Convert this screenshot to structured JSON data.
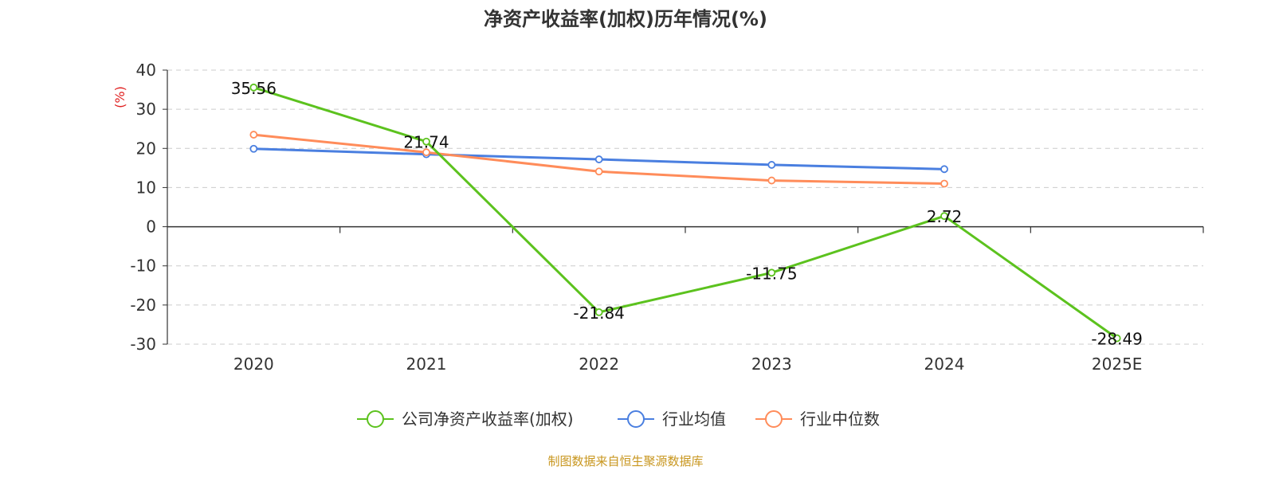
{
  "chart_data": {
    "type": "line",
    "title": "净资产收益率(加权)历年情况(%)",
    "ylabel": "(%)",
    "xlabel": "",
    "categories": [
      "2020",
      "2021",
      "2022",
      "2023",
      "2024",
      "2025E"
    ],
    "ylim": [
      -30,
      40
    ],
    "yticks": [
      40,
      30,
      20,
      10,
      0,
      -10,
      -20,
      -30
    ],
    "grid": true,
    "legend_position": "bottom",
    "series": [
      {
        "name": "公司净资产收益率(加权)",
        "color": "#5cc21e",
        "values": [
          35.56,
          21.74,
          -21.84,
          -11.75,
          2.72,
          -28.49
        ],
        "show_labels": true
      },
      {
        "name": "行业均值",
        "color": "#4a7fe0",
        "values": [
          19.9,
          18.5,
          17.2,
          15.8,
          14.7,
          null
        ],
        "show_labels": false
      },
      {
        "name": "行业中位数",
        "color": "#ff8c5a",
        "values": [
          23.5,
          19.0,
          14.1,
          11.8,
          11.0,
          null
        ],
        "show_labels": false
      }
    ],
    "labels": [
      "35.56",
      "21.74",
      "-21.84",
      "-11.75",
      "2.72",
      "-28.49"
    ]
  },
  "footer": {
    "text": "制图数据来自恒生聚源数据库",
    "color": "#c8961e"
  },
  "ylabel_color": "#e02020"
}
